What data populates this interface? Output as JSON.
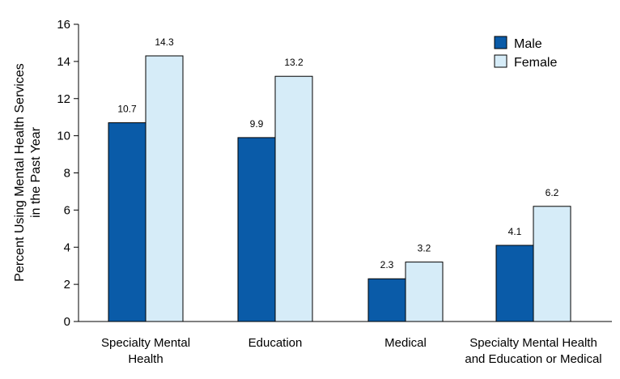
{
  "chart_data": {
    "type": "bar",
    "ylabel": [
      "Percent Using Mental Health Services",
      "in the Past Year"
    ],
    "ylim": [
      0,
      16
    ],
    "yticks": [
      0,
      2,
      4,
      6,
      8,
      10,
      12,
      14,
      16
    ],
    "categories": [
      [
        "Specialty Mental",
        "Health"
      ],
      [
        "Education"
      ],
      [
        "Medical"
      ],
      [
        "Specialty Mental Health",
        "and Education or Medical"
      ]
    ],
    "series": [
      {
        "name": "Male",
        "color": "#0A5BA8",
        "values": [
          10.7,
          9.9,
          2.3,
          4.1
        ]
      },
      {
        "name": "Female",
        "color": "#D6ECF8",
        "values": [
          14.3,
          13.2,
          3.2,
          6.2
        ]
      }
    ],
    "legend": "top-right",
    "grid": false
  }
}
